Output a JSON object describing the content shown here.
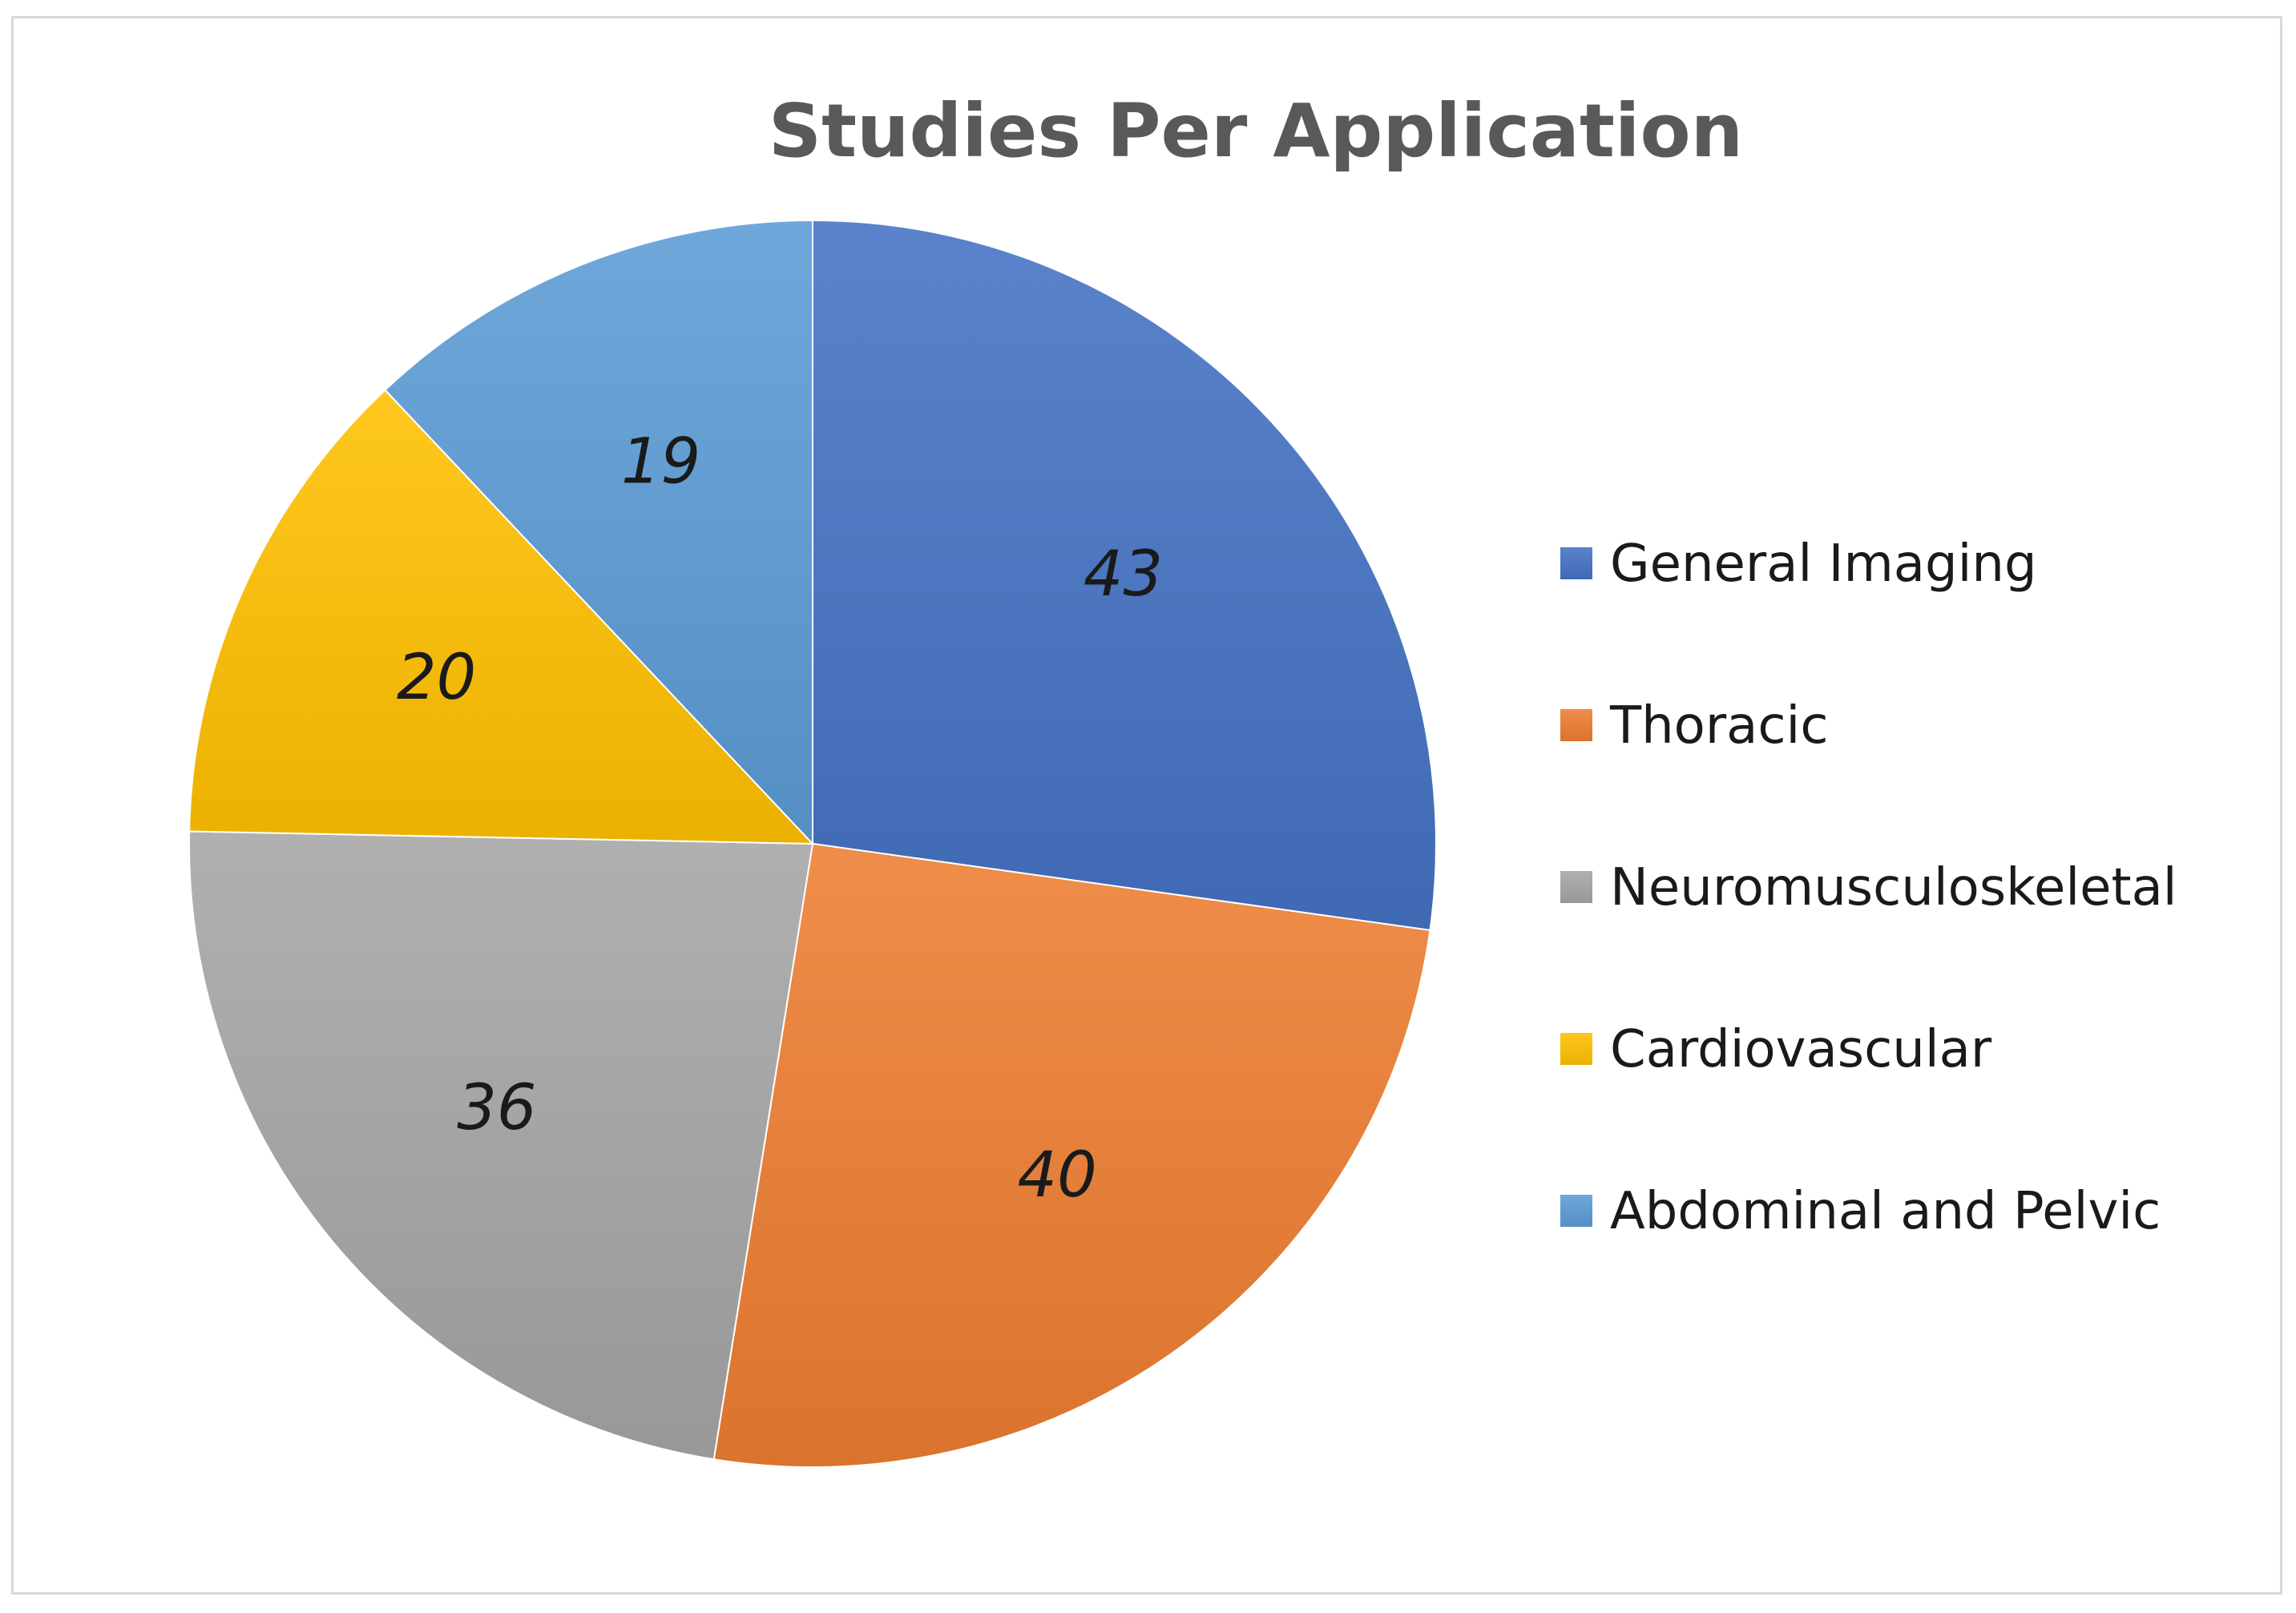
{
  "chart_data": {
    "type": "pie",
    "title": "Studies Per Application",
    "categories": [
      "General Imaging",
      "Thoracic",
      "Neuromusculoskeletal",
      "Cardiovascular",
      "Abdominal and Pelvic"
    ],
    "values": [
      43,
      40,
      36,
      20,
      19
    ],
    "data_labels": [
      "43",
      "40",
      "36",
      "20",
      "19"
    ],
    "colors": [
      "#4472c4",
      "#ed7d31",
      "#a5a5a5",
      "#ffc000",
      "#5b9bd5"
    ],
    "start_angle": "12 o'clock",
    "direction": "clockwise",
    "legend_position": "right"
  }
}
